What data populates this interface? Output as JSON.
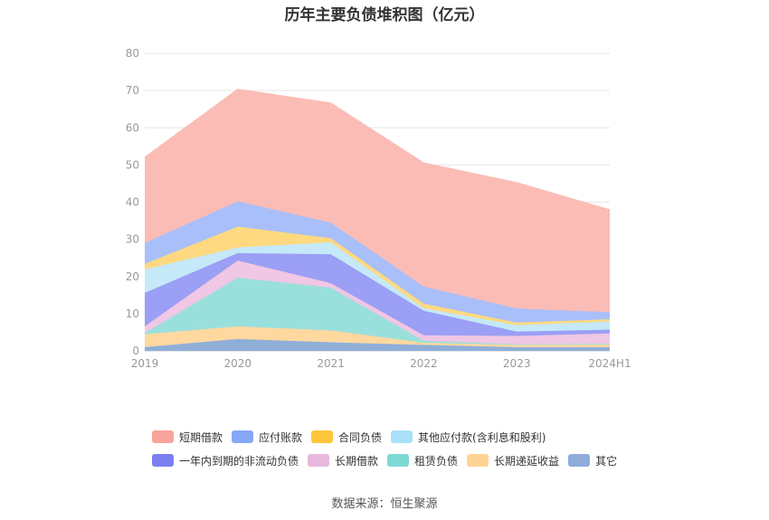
{
  "title": "历年主要负债堆积图（亿元）",
  "source": "数据来源：恒生聚源",
  "chart_data": {
    "type": "area",
    "stacked": true,
    "categories": [
      "2019",
      "2020",
      "2021",
      "2022",
      "2023",
      "2024H1"
    ],
    "ylim": [
      0,
      80
    ],
    "yticks": [
      0,
      10,
      20,
      30,
      40,
      50,
      60,
      70,
      80
    ],
    "grid": true,
    "legend_position": "bottom",
    "series": [
      {
        "name": "其它",
        "color": "#8fafd9",
        "values": [
          1.0,
          3.2,
          2.3,
          1.6,
          1.0,
          1.0
        ]
      },
      {
        "name": "长期递延收益",
        "color": "#ffd8a0",
        "values": [
          3.5,
          3.4,
          3.2,
          0.6,
          0.6,
          0.7
        ]
      },
      {
        "name": "租赁负债",
        "color": "#99e0dc",
        "values": [
          0.3,
          13.1,
          11.5,
          0.5,
          0.2,
          0.2
        ]
      },
      {
        "name": "长期借款",
        "color": "#f0c7e4",
        "values": [
          1.8,
          4.6,
          1.2,
          1.5,
          2.2,
          2.8
        ]
      },
      {
        "name": "一年内到期的非流动负债",
        "color": "#9b9ff5",
        "values": [
          9.0,
          2.0,
          7.8,
          6.6,
          1.2,
          1.0
        ]
      },
      {
        "name": "其他应付款(含利息和股利)",
        "color": "#c5e9f8",
        "values": [
          6.3,
          1.5,
          3.2,
          0.7,
          1.7,
          2.2
        ]
      },
      {
        "name": "合同负债",
        "color": "#ffd980",
        "values": [
          1.5,
          5.6,
          1.1,
          1.2,
          0.7,
          0.6
        ]
      },
      {
        "name": "应付账款",
        "color": "#a9bff9",
        "values": [
          5.6,
          6.8,
          4.2,
          4.6,
          3.8,
          1.9
        ]
      },
      {
        "name": "短期借款",
        "color": "#fbbcb6",
        "values": [
          23.0,
          30.1,
          32.1,
          33.2,
          33.8,
          27.5
        ]
      }
    ]
  },
  "legend_rows": [
    [
      {
        "name": "短期借款",
        "color": "#f9a39b"
      },
      {
        "name": "应付账款",
        "color": "#87a7f7"
      },
      {
        "name": "合同负债",
        "color": "#ffc53d"
      },
      {
        "name": "其他应付款(含利息和股利)",
        "color": "#a9e1fa"
      }
    ],
    [
      {
        "name": "一年内到期的非流动负债",
        "color": "#7b7ff2"
      },
      {
        "name": "长期借款",
        "color": "#e9b8dc"
      },
      {
        "name": "租赁负债",
        "color": "#80d8d2"
      },
      {
        "name": "长期递延收益",
        "color": "#ffd394"
      },
      {
        "name": "其它",
        "color": "#8eaddb"
      }
    ]
  ]
}
